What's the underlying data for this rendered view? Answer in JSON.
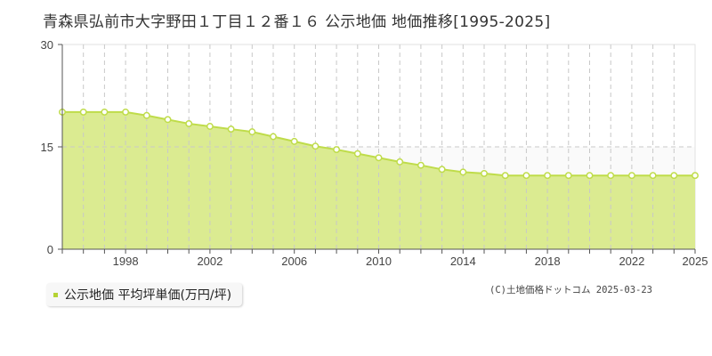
{
  "title": "青森県弘前市大字野田１丁目１２番１６ 公示地価 地価推移[1995-2025]",
  "legend": {
    "label": "公示地価 平均坪単価(万円/坪)",
    "color": "#b5d334"
  },
  "copyright": "(C)土地価格ドットコム 2025-03-23",
  "colors": {
    "fill": "#dbeb91",
    "line": "#bfdc4a",
    "marker_stroke": "#bfdc4a",
    "marker_fill": "#ffffff",
    "grid": "#c8c8c8",
    "band": "#fafafa"
  },
  "chart_data": {
    "type": "area",
    "title": "青森県弘前市大字野田１丁目１２番１６ 公示地価 地価推移[1995-2025]",
    "xlabel": "",
    "ylabel": "",
    "ylim": [
      0,
      30
    ],
    "yticks": [
      0,
      15,
      30
    ],
    "xticks": [
      1998,
      2002,
      2006,
      2010,
      2014,
      2018,
      2022,
      2025
    ],
    "grid": true,
    "legend_position": "bottom-left",
    "series": [
      {
        "name": "公示地価 平均坪単価(万円/坪)",
        "x": [
          1995,
          1996,
          1997,
          1998,
          1999,
          2000,
          2001,
          2002,
          2003,
          2004,
          2005,
          2006,
          2007,
          2008,
          2009,
          2010,
          2011,
          2012,
          2013,
          2014,
          2015,
          2016,
          2017,
          2018,
          2019,
          2020,
          2021,
          2022,
          2023,
          2024,
          2025
        ],
        "values": [
          20.1,
          20.1,
          20.1,
          20.1,
          19.6,
          19.0,
          18.4,
          18.0,
          17.6,
          17.2,
          16.5,
          15.8,
          15.1,
          14.6,
          14.0,
          13.4,
          12.8,
          12.3,
          11.7,
          11.3,
          11.1,
          10.8,
          10.8,
          10.8,
          10.8,
          10.8,
          10.8,
          10.8,
          10.8,
          10.8,
          10.8
        ]
      }
    ]
  }
}
